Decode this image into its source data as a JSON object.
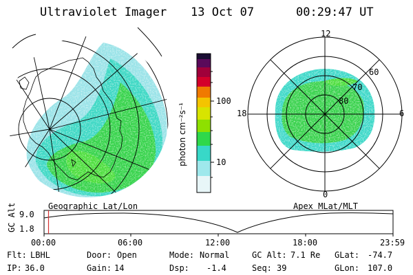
{
  "header": {
    "title": "Ultraviolet Imager",
    "date": "13 Oct 07",
    "time": "00:29:47 UT"
  },
  "colorbar": {
    "label": "photon cm⁻²s⁻¹",
    "ticks": [
      "100",
      "10"
    ],
    "colors": [
      "#1a0d33",
      "#5a0a5a",
      "#a0003a",
      "#d4002a",
      "#f07a00",
      "#f4c400",
      "#d8e400",
      "#8ee000",
      "#2fd84a",
      "#38d8c8",
      "#9fe8ec",
      "#e8f6f8"
    ]
  },
  "panels": {
    "left_caption": "Geographic Lat/Lon",
    "right_caption": "Apex MLat/MLT",
    "polar_labels": {
      "top": "12",
      "left": "18",
      "right": "6",
      "bottom": "0",
      "lat_60": "60",
      "lat_70": "70",
      "lat_80": "80"
    }
  },
  "altitude_plot": {
    "ylabel": "GC Alt",
    "ymax": "9.0",
    "ymin": "1.8",
    "xticks": [
      "00:00",
      "06:00",
      "12:00",
      "18:00",
      "23:59"
    ],
    "marker_time": "00:29:47"
  },
  "info": {
    "row1": [
      {
        "label": "Flt:",
        "value": "LBHL"
      },
      {
        "label": "Door:",
        "value": "Open"
      },
      {
        "label": "Mode:",
        "value": "Normal"
      },
      {
        "label": "GC Alt:",
        "value": "7.1 Re"
      },
      {
        "label": "GLat:",
        "value": "-74.7"
      }
    ],
    "row2": [
      {
        "label": "IP:",
        "value": "36.0"
      },
      {
        "label": "Gain:",
        "value": "14"
      },
      {
        "label": "Dsp:",
        "value": "-1.4"
      },
      {
        "label": "Seq:",
        "value": "39"
      },
      {
        "label": "GLon:",
        "value": "107.0"
      }
    ]
  }
}
